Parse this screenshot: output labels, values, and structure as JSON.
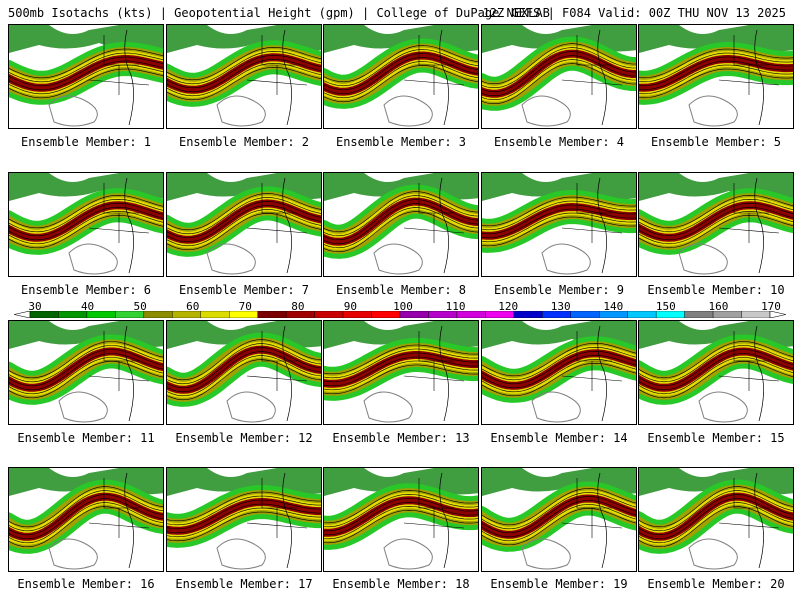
{
  "header": {
    "left": "500mb Isotachs (kts) | Geopotential Height (gpm) | College of DuPage NEXLAB",
    "right": "12Z GEFS | F084 Valid: 00Z THU NOV 13 2025"
  },
  "members": [
    "Ensemble Member: 1",
    "Ensemble Member: 2",
    "Ensemble Member: 3",
    "Ensemble Member: 4",
    "Ensemble Member: 5",
    "Ensemble Member: 6",
    "Ensemble Member: 7",
    "Ensemble Member: 8",
    "Ensemble Member: 9",
    "Ensemble Member: 10",
    "Ensemble Member: 11",
    "Ensemble Member: 12",
    "Ensemble Member: 13",
    "Ensemble Member: 14",
    "Ensemble Member: 15",
    "Ensemble Member: 16",
    "Ensemble Member: 17",
    "Ensemble Member: 18",
    "Ensemble Member: 19",
    "Ensemble Member: 20"
  ],
  "scale": {
    "labels": [
      "30",
      "40",
      "50",
      "60",
      "70",
      "80",
      "90",
      "100",
      "110",
      "120",
      "130",
      "140",
      "150",
      "160",
      "170"
    ],
    "colors": [
      "#006400",
      "#009600",
      "#00c800",
      "#32d232",
      "#8c8c00",
      "#b4b400",
      "#dcdc00",
      "#ffff00",
      "#7a0000",
      "#a00000",
      "#c80000",
      "#e60000",
      "#ff0000",
      "#9600aa",
      "#b400c8",
      "#d200dc",
      "#ee00ee",
      "#0000c8",
      "#0032ff",
      "#0064ff",
      "#0096ff",
      "#00c8ff",
      "#00ffff",
      "#808080",
      "#a0a0a0",
      "#c8c8c8"
    ]
  },
  "palette": {
    "green_dark": "#1e8c1e",
    "green_light": "#28c828",
    "olive": "#a0a000",
    "yellow": "#e6dc00",
    "red_dark": "#8c0000",
    "height_line": "#808080",
    "borders": "#000000"
  }
}
